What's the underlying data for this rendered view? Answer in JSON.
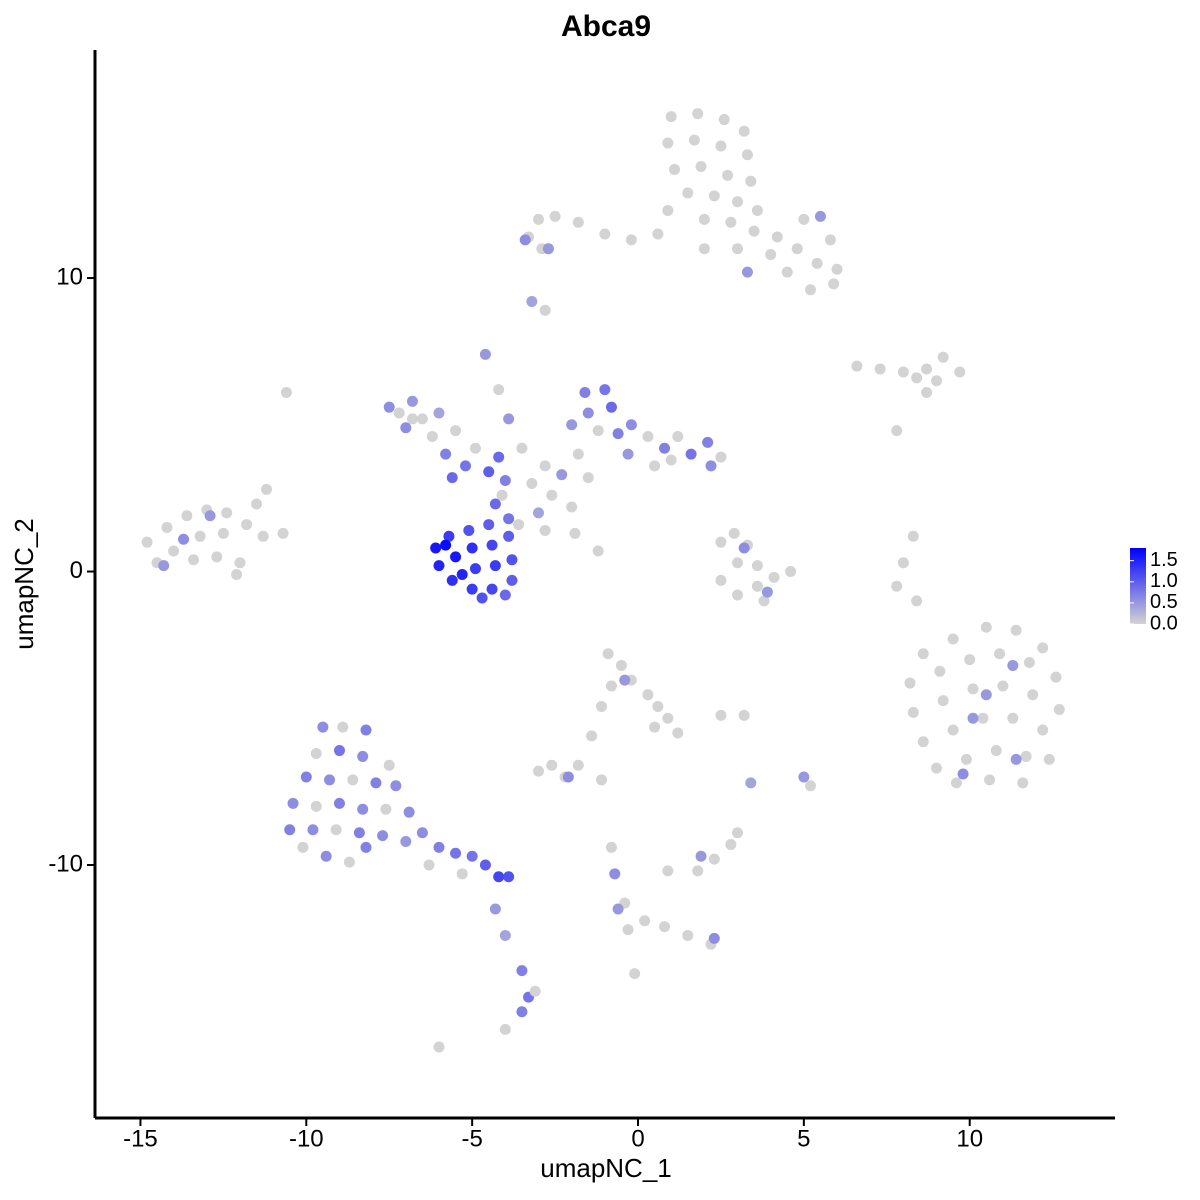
{
  "chart_data": {
    "type": "scatter",
    "title": "Abca9",
    "x_label": "umapNC_1",
    "y_label": "umapNC_2",
    "xlim": [
      -16.37,
      14.38
    ],
    "ylim": [
      -18.62,
      17.77
    ],
    "xticks": [
      -15,
      -10,
      -5,
      0,
      5,
      10
    ],
    "yticks": [
      -10,
      0,
      10
    ],
    "colors": [
      "#d3d3d3",
      "#0000ff"
    ],
    "colorlim": [
      0,
      1.8
    ],
    "colorticks": [
      {
        "value": 0,
        "label": "0.0"
      },
      {
        "value": 0.5,
        "label": "0.5"
      },
      {
        "value": 1,
        "label": "1.0"
      },
      1.5
    ],
    "points": [
      [
        1.0,
        15.5,
        0
      ],
      [
        1.8,
        15.6,
        0
      ],
      [
        2.6,
        15.4,
        0
      ],
      [
        3.2,
        15.0,
        0
      ],
      [
        0.9,
        14.6,
        0
      ],
      [
        1.7,
        14.7,
        0
      ],
      [
        2.5,
        14.5,
        0
      ],
      [
        3.3,
        14.2,
        0
      ],
      [
        1.1,
        13.7,
        0
      ],
      [
        1.9,
        13.8,
        0
      ],
      [
        2.7,
        13.5,
        0
      ],
      [
        3.4,
        13.3,
        0
      ],
      [
        1.5,
        12.9,
        0
      ],
      [
        2.3,
        12.8,
        0
      ],
      [
        3.0,
        12.6,
        0
      ],
      [
        3.6,
        12.3,
        0
      ],
      [
        2.0,
        12.0,
        0
      ],
      [
        2.8,
        11.9,
        0
      ],
      [
        3.5,
        11.6,
        0
      ],
      [
        4.2,
        11.4,
        0
      ],
      [
        4.8,
        11.0,
        0
      ],
      [
        5.4,
        10.5,
        0
      ],
      [
        5.9,
        9.8,
        0
      ],
      [
        5.2,
        9.6,
        0
      ],
      [
        4.5,
        10.2,
        0
      ],
      [
        4.0,
        10.8,
        0
      ],
      [
        5.8,
        11.3,
        0
      ],
      [
        5.0,
        12.0,
        0
      ],
      [
        6.0,
        10.3,
        0
      ],
      [
        3.0,
        11.0,
        0
      ],
      [
        0.6,
        11.5,
        0
      ],
      [
        -0.2,
        11.3,
        0
      ],
      [
        -1.0,
        11.5,
        0
      ],
      [
        -1.8,
        11.9,
        0
      ],
      [
        -2.5,
        12.1,
        0
      ],
      [
        -3.0,
        12.0,
        0
      ],
      [
        -3.3,
        11.4,
        0
      ],
      [
        0.9,
        12.3,
        0
      ],
      [
        2.0,
        11.0,
        0
      ],
      [
        -2.9,
        11.0,
        0
      ],
      [
        -3.4,
        11.3,
        0.6
      ],
      [
        3.3,
        10.2,
        0.5
      ],
      [
        5.5,
        12.1,
        0.5
      ],
      [
        -2.7,
        11.0,
        0.5
      ],
      [
        -2.8,
        8.9,
        0
      ],
      [
        -3.2,
        9.2,
        0.4
      ],
      [
        6.6,
        7.0,
        0
      ],
      [
        7.3,
        6.9,
        0
      ],
      [
        8.0,
        6.8,
        0
      ],
      [
        8.7,
        6.9,
        0
      ],
      [
        9.2,
        7.3,
        0
      ],
      [
        9.7,
        6.8,
        0
      ],
      [
        9.0,
        6.5,
        0
      ],
      [
        8.4,
        6.6,
        0
      ],
      [
        8.7,
        6.1,
        0
      ],
      [
        7.8,
        4.8,
        0
      ],
      [
        -14.8,
        1.0,
        0
      ],
      [
        -14.2,
        1.5,
        0
      ],
      [
        -13.6,
        1.9,
        0
      ],
      [
        -13.0,
        2.1,
        0
      ],
      [
        -12.4,
        2.0,
        0
      ],
      [
        -11.8,
        1.6,
        0
      ],
      [
        -11.3,
        1.2,
        0
      ],
      [
        -10.7,
        1.3,
        0
      ],
      [
        -11.5,
        2.3,
        0
      ],
      [
        -11.2,
        2.8,
        0
      ],
      [
        -14.0,
        0.7,
        0
      ],
      [
        -13.4,
        0.4,
        0
      ],
      [
        -12.7,
        0.5,
        0
      ],
      [
        -12.0,
        0.3,
        0
      ],
      [
        -12.1,
        -0.1,
        0
      ],
      [
        -13.2,
        1.2,
        0
      ],
      [
        -12.5,
        1.3,
        0
      ],
      [
        -14.5,
        0.3,
        0
      ],
      [
        -10.6,
        6.1,
        0
      ],
      [
        -13.7,
        1.1,
        0.6
      ],
      [
        -12.9,
        1.9,
        0.5
      ],
      [
        -14.3,
        0.2,
        0.5
      ],
      [
        2.5,
        1.0,
        0
      ],
      [
        2.9,
        1.3,
        0
      ],
      [
        3.3,
        0.9,
        0
      ],
      [
        3.0,
        0.3,
        0
      ],
      [
        3.6,
        0.2,
        0
      ],
      [
        4.1,
        -0.2,
        0
      ],
      [
        4.6,
        0.0,
        0
      ],
      [
        3.6,
        -0.5,
        0
      ],
      [
        3.0,
        -0.8,
        0
      ],
      [
        2.5,
        -0.3,
        0
      ],
      [
        3.8,
        -1.0,
        0
      ],
      [
        3.2,
        0.8,
        0.6
      ],
      [
        3.9,
        -0.7,
        0.5
      ],
      [
        8.3,
        1.2,
        0
      ],
      [
        8.0,
        0.3,
        0
      ],
      [
        7.8,
        -0.5,
        0
      ],
      [
        8.4,
        -1.0,
        0
      ],
      [
        8.6,
        -2.8,
        0
      ],
      [
        9.5,
        -2.3,
        0
      ],
      [
        10.5,
        -1.9,
        0
      ],
      [
        11.4,
        -2.0,
        0
      ],
      [
        12.2,
        -2.6,
        0
      ],
      [
        8.2,
        -3.8,
        0
      ],
      [
        9.1,
        -3.4,
        0
      ],
      [
        10.0,
        -3.0,
        0
      ],
      [
        10.9,
        -2.8,
        0
      ],
      [
        11.8,
        -3.1,
        0
      ],
      [
        12.6,
        -3.6,
        0
      ],
      [
        8.3,
        -4.8,
        0
      ],
      [
        9.2,
        -4.4,
        0
      ],
      [
        10.1,
        -4.0,
        0
      ],
      [
        11.0,
        -3.9,
        0
      ],
      [
        11.9,
        -4.2,
        0
      ],
      [
        12.7,
        -4.7,
        0
      ],
      [
        8.6,
        -5.8,
        0
      ],
      [
        9.5,
        -5.4,
        0
      ],
      [
        10.4,
        -5.0,
        0
      ],
      [
        11.3,
        -5.0,
        0
      ],
      [
        12.2,
        -5.4,
        0
      ],
      [
        9.0,
        -6.7,
        0
      ],
      [
        9.9,
        -6.4,
        0
      ],
      [
        10.8,
        -6.1,
        0
      ],
      [
        11.7,
        -6.3,
        0
      ],
      [
        12.4,
        -6.4,
        0
      ],
      [
        9.6,
        -7.2,
        0
      ],
      [
        10.6,
        -7.1,
        0
      ],
      [
        11.6,
        -7.2,
        0
      ],
      [
        11.3,
        -3.2,
        0.5
      ],
      [
        10.5,
        -4.2,
        0.5
      ],
      [
        10.1,
        -5.0,
        0.5
      ],
      [
        11.4,
        -6.4,
        0.5
      ],
      [
        9.8,
        -6.9,
        0.6
      ],
      [
        -0.9,
        -2.8,
        0
      ],
      [
        -0.5,
        -3.2,
        0
      ],
      [
        -0.8,
        -3.9,
        0
      ],
      [
        -0.2,
        -3.7,
        0
      ],
      [
        0.3,
        -4.2,
        0
      ],
      [
        0.6,
        -4.6,
        0
      ],
      [
        0.9,
        -5.0,
        0
      ],
      [
        1.2,
        -5.5,
        0
      ],
      [
        0.5,
        -5.3,
        0
      ],
      [
        -1.1,
        -4.6,
        0
      ],
      [
        -1.4,
        -5.6,
        0
      ],
      [
        -1.8,
        -6.6,
        0
      ],
      [
        2.5,
        -4.9,
        0
      ],
      [
        3.2,
        -4.9,
        0
      ],
      [
        -0.4,
        -3.7,
        0.5
      ],
      [
        -3.0,
        -6.8,
        0
      ],
      [
        -2.6,
        -6.6,
        0
      ],
      [
        -2.2,
        -7.0,
        0
      ],
      [
        -1.1,
        -7.1,
        0
      ],
      [
        -2.1,
        -7.0,
        0.6
      ],
      [
        5.0,
        -7.0,
        0.5
      ],
      [
        5.2,
        -7.3,
        0
      ],
      [
        3.4,
        -7.2,
        0.4
      ],
      [
        1.8,
        -10.2,
        0
      ],
      [
        2.3,
        -9.8,
        0
      ],
      [
        2.8,
        -9.3,
        0
      ],
      [
        3.0,
        -8.9,
        0
      ],
      [
        1.9,
        -9.7,
        0.5
      ],
      [
        0.9,
        -10.2,
        0
      ],
      [
        -0.8,
        -9.4,
        0
      ],
      [
        -0.7,
        -10.3,
        0.6
      ],
      [
        -0.4,
        -11.3,
        0
      ],
      [
        -0.3,
        -12.2,
        0
      ],
      [
        0.2,
        -11.9,
        0
      ],
      [
        0.8,
        -12.1,
        0
      ],
      [
        1.5,
        -12.4,
        0
      ],
      [
        2.2,
        -12.7,
        0
      ],
      [
        2.3,
        -12.5,
        0.6
      ],
      [
        -0.6,
        -11.5,
        0.5
      ],
      [
        -0.1,
        -13.7,
        0
      ],
      [
        -6.8,
        5.2,
        0
      ],
      [
        -5.5,
        4.8,
        0
      ],
      [
        -4.1,
        2.6,
        0
      ],
      [
        -2.0,
        2.2,
        0
      ],
      [
        -1.5,
        3.2,
        0
      ],
      [
        0.5,
        3.6,
        0
      ],
      [
        -7.5,
        5.6,
        0.6
      ],
      [
        -7.2,
        5.4,
        0
      ],
      [
        -6.8,
        5.8,
        0.5
      ],
      [
        -6.5,
        5.2,
        0
      ],
      [
        -7.0,
        4.9,
        0.6
      ],
      [
        -6.2,
        4.6,
        0
      ],
      [
        -5.8,
        4.0,
        0.7
      ],
      [
        -5.2,
        3.6,
        0.8
      ],
      [
        -5.6,
        3.2,
        0.9
      ],
      [
        -4.9,
        4.2,
        0
      ],
      [
        -6.0,
        5.4,
        0.4
      ],
      [
        -4.6,
        7.4,
        0.5
      ],
      [
        -4.2,
        6.2,
        0
      ],
      [
        -3.9,
        5.2,
        0.5
      ],
      [
        -3.5,
        4.2,
        0
      ],
      [
        -1.6,
        6.1,
        0.7
      ],
      [
        -1.0,
        6.2,
        0.8
      ],
      [
        -0.8,
        5.6,
        0.9
      ],
      [
        -1.5,
        5.4,
        0.6
      ],
      [
        -1.2,
        4.8,
        0
      ],
      [
        -0.6,
        4.7,
        0.7
      ],
      [
        -2.0,
        5.0,
        0.5
      ],
      [
        -0.2,
        5.0,
        0.6
      ],
      [
        0.3,
        4.6,
        0
      ],
      [
        0.8,
        4.2,
        0.7
      ],
      [
        1.2,
        4.6,
        0
      ],
      [
        1.6,
        4.0,
        0.8
      ],
      [
        2.1,
        4.4,
        0.7
      ],
      [
        2.5,
        3.9,
        0
      ],
      [
        2.2,
        3.6,
        0.6
      ],
      [
        1.0,
        3.8,
        0
      ],
      [
        -0.3,
        4.0,
        0.5
      ],
      [
        -1.8,
        4.0,
        0
      ],
      [
        -2.8,
        3.6,
        0
      ],
      [
        -2.3,
        3.3,
        0.5
      ],
      [
        -3.2,
        3.0,
        0
      ],
      [
        -2.6,
        2.6,
        0
      ],
      [
        -3.0,
        2.0,
        0.4
      ],
      [
        -3.6,
        1.6,
        0
      ],
      [
        -2.8,
        1.4,
        0
      ],
      [
        -1.2,
        0.7,
        0
      ],
      [
        -1.9,
        1.3,
        0
      ],
      [
        -4.2,
        3.9,
        0.9
      ],
      [
        -4.0,
        3.1,
        0.7
      ],
      [
        -4.3,
        2.3,
        0.9
      ],
      [
        -3.9,
        1.8,
        0.8
      ],
      [
        -4.5,
        3.4,
        1.0
      ],
      [
        -6.1,
        0.8,
        1.6
      ],
      [
        -6.0,
        0.2,
        1.5
      ],
      [
        -5.7,
        1.2,
        1.3
      ],
      [
        -5.5,
        0.5,
        1.6
      ],
      [
        -5.6,
        -0.3,
        1.4
      ],
      [
        -5.1,
        1.4,
        1.1
      ],
      [
        -5.0,
        0.8,
        1.4
      ],
      [
        -4.9,
        0.1,
        1.3
      ],
      [
        -5.0,
        -0.6,
        1.3
      ],
      [
        -4.5,
        1.6,
        1.0
      ],
      [
        -4.4,
        0.9,
        1.2
      ],
      [
        -4.3,
        0.2,
        1.3
      ],
      [
        -4.4,
        -0.6,
        1.2
      ],
      [
        -3.9,
        1.2,
        1.0
      ],
      [
        -3.8,
        0.4,
        1.1
      ],
      [
        -3.8,
        -0.3,
        1.0
      ],
      [
        -5.8,
        0.9,
        1.7
      ],
      [
        -4.7,
        -0.9,
        1.1
      ],
      [
        -5.3,
        -0.1,
        1.5
      ],
      [
        -4.0,
        -0.8,
        0.9
      ],
      [
        -9.5,
        -5.3,
        0.6
      ],
      [
        -8.9,
        -5.3,
        0
      ],
      [
        -8.2,
        -5.4,
        0.7
      ],
      [
        -9.7,
        -6.2,
        0
      ],
      [
        -9.0,
        -6.1,
        0.8
      ],
      [
        -8.3,
        -6.3,
        0.6
      ],
      [
        -7.5,
        -6.6,
        0
      ],
      [
        -10.0,
        -7.0,
        0.7
      ],
      [
        -9.3,
        -7.1,
        0.6
      ],
      [
        -8.6,
        -7.1,
        0
      ],
      [
        -7.9,
        -7.2,
        0.7
      ],
      [
        -7.3,
        -7.3,
        0.6
      ],
      [
        -10.4,
        -7.9,
        0.6
      ],
      [
        -9.7,
        -8.0,
        0
      ],
      [
        -9.0,
        -7.9,
        0.7
      ],
      [
        -8.3,
        -8.1,
        0.6
      ],
      [
        -7.6,
        -8.1,
        0
      ],
      [
        -6.9,
        -8.2,
        0.6
      ],
      [
        -10.5,
        -8.8,
        0.7
      ],
      [
        -9.8,
        -8.8,
        0.6
      ],
      [
        -9.1,
        -8.8,
        0
      ],
      [
        -8.4,
        -8.9,
        0.7
      ],
      [
        -7.7,
        -9.0,
        0.6
      ],
      [
        -7.0,
        -9.2,
        0.5
      ],
      [
        -10.1,
        -9.4,
        0
      ],
      [
        -9.4,
        -9.7,
        0.6
      ],
      [
        -8.7,
        -9.9,
        0
      ],
      [
        -8.2,
        -9.4,
        0.7
      ],
      [
        -6.5,
        -8.9,
        0.6
      ],
      [
        -6.0,
        -9.4,
        0.7
      ],
      [
        -5.5,
        -9.6,
        0.8
      ],
      [
        -5.0,
        -9.7,
        0.8
      ],
      [
        -4.6,
        -10.0,
        1.0
      ],
      [
        -4.2,
        -10.4,
        1.2
      ],
      [
        -3.9,
        -10.4,
        1.1
      ],
      [
        -6.3,
        -10.0,
        0
      ],
      [
        -5.3,
        -10.3,
        0
      ],
      [
        -4.3,
        -11.5,
        0.5
      ],
      [
        -4.0,
        -12.4,
        0.4
      ],
      [
        -3.5,
        -13.6,
        0.7
      ],
      [
        -3.3,
        -14.5,
        0.8
      ],
      [
        -3.5,
        -15.0,
        0.7
      ],
      [
        -3.1,
        -14.3,
        0
      ],
      [
        -4.0,
        -15.6,
        0
      ],
      [
        -6.0,
        -16.2,
        0
      ]
    ]
  }
}
